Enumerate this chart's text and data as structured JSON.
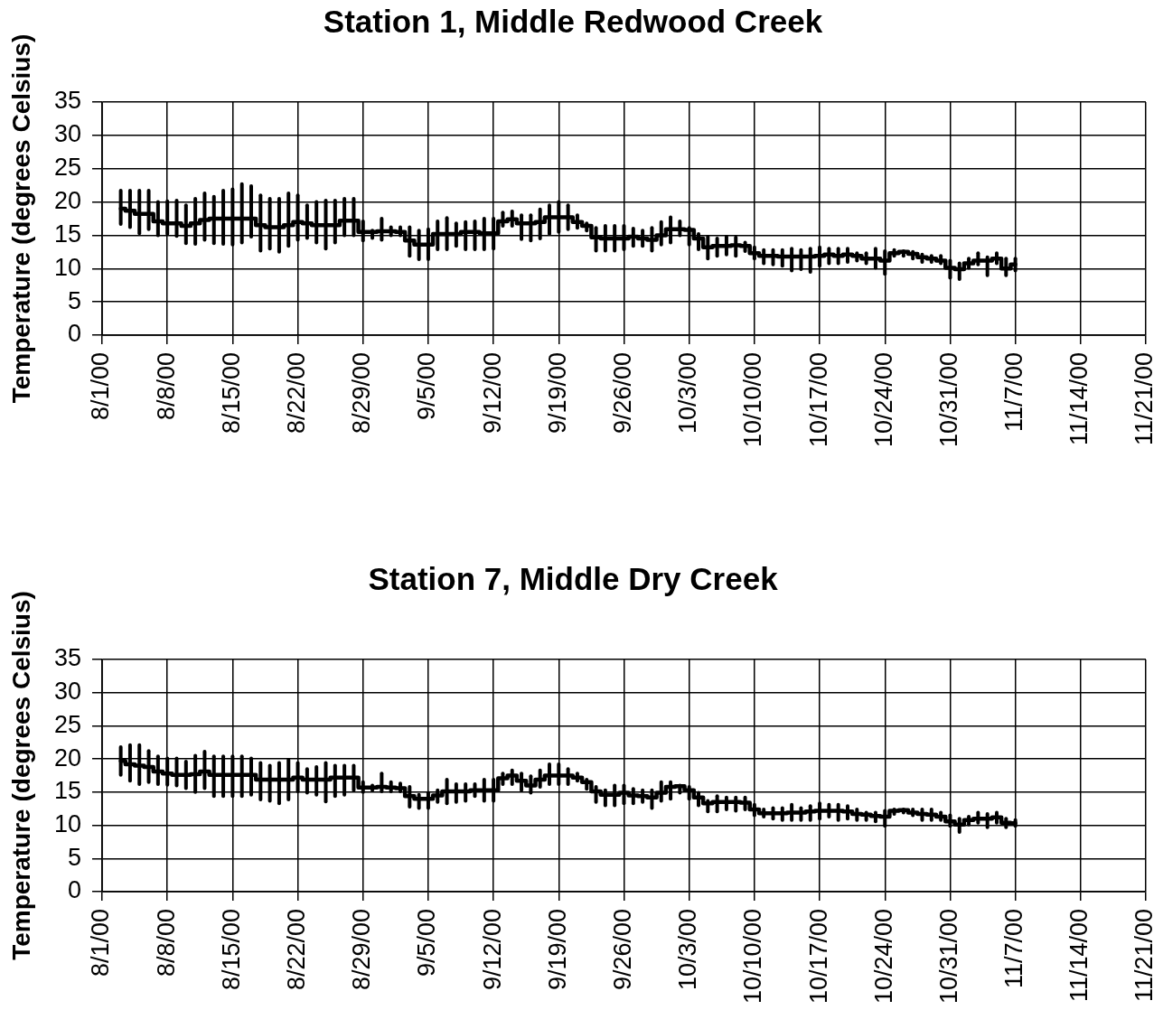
{
  "chart_data": [
    {
      "type": "step",
      "title": "Station 1, Middle Redwood Creek",
      "ylabel": "Temperature (degrees Celsius)",
      "color": "#000000",
      "grid": true,
      "xlim": [
        "2000-08-01",
        "2000-11-21"
      ],
      "xticks": [
        {
          "value": "2000-08-01",
          "label": "8/1/00"
        },
        {
          "value": "2000-08-08",
          "label": "8/8/00"
        },
        {
          "value": "2000-08-15",
          "label": "8/15/00"
        },
        {
          "value": "2000-08-22",
          "label": "8/22/00"
        },
        {
          "value": "2000-08-29",
          "label": "8/29/00"
        },
        {
          "value": "2000-09-05",
          "label": "9/5/00"
        },
        {
          "value": "2000-09-12",
          "label": "9/12/00"
        },
        {
          "value": "2000-09-19",
          "label": "9/19/00"
        },
        {
          "value": "2000-09-26",
          "label": "9/26/00"
        },
        {
          "value": "2000-10-03",
          "label": "10/3/00"
        },
        {
          "value": "2000-10-10",
          "label": "10/10/00"
        },
        {
          "value": "2000-10-17",
          "label": "10/17/00"
        },
        {
          "value": "2000-10-24",
          "label": "10/24/00"
        },
        {
          "value": "2000-10-31",
          "label": "10/31/00"
        },
        {
          "value": "2000-11-07",
          "label": "11/7/00"
        },
        {
          "value": "2000-11-14",
          "label": "11/14/00"
        },
        {
          "value": "2000-11-21",
          "label": "11/21/00"
        }
      ],
      "ylim": [
        0,
        35
      ],
      "yticks": [
        0,
        5,
        10,
        15,
        20,
        25,
        30,
        35
      ],
      "x": [
        "2000-08-03",
        "2000-08-04",
        "2000-08-05",
        "2000-08-06",
        "2000-08-07",
        "2000-08-08",
        "2000-08-09",
        "2000-08-10",
        "2000-08-11",
        "2000-08-12",
        "2000-08-13",
        "2000-08-14",
        "2000-08-15",
        "2000-08-16",
        "2000-08-17",
        "2000-08-18",
        "2000-08-19",
        "2000-08-20",
        "2000-08-21",
        "2000-08-22",
        "2000-08-23",
        "2000-08-24",
        "2000-08-25",
        "2000-08-26",
        "2000-08-27",
        "2000-08-28",
        "2000-08-29",
        "2000-08-30",
        "2000-08-31",
        "2000-09-01",
        "2000-09-02",
        "2000-09-03",
        "2000-09-04",
        "2000-09-05",
        "2000-09-06",
        "2000-09-07",
        "2000-09-08",
        "2000-09-09",
        "2000-09-10",
        "2000-09-11",
        "2000-09-12",
        "2000-09-13",
        "2000-09-14",
        "2000-09-15",
        "2000-09-16",
        "2000-09-17",
        "2000-09-18",
        "2000-09-19",
        "2000-09-20",
        "2000-09-21",
        "2000-09-22",
        "2000-09-23",
        "2000-09-24",
        "2000-09-25",
        "2000-09-26",
        "2000-09-27",
        "2000-09-28",
        "2000-09-29",
        "2000-09-30",
        "2000-10-01",
        "2000-10-02",
        "2000-10-03",
        "2000-10-04",
        "2000-10-05",
        "2000-10-06",
        "2000-10-07",
        "2000-10-08",
        "2000-10-09",
        "2000-10-10",
        "2000-10-11",
        "2000-10-12",
        "2000-10-13",
        "2000-10-14",
        "2000-10-15",
        "2000-10-16",
        "2000-10-17",
        "2000-10-18",
        "2000-10-19",
        "2000-10-20",
        "2000-10-21",
        "2000-10-22",
        "2000-10-23",
        "2000-10-24",
        "2000-10-25",
        "2000-10-26",
        "2000-10-27",
        "2000-10-28",
        "2000-10-29",
        "2000-10-30",
        "2000-10-31",
        "2000-11-01",
        "2000-11-02",
        "2000-11-03",
        "2000-11-04",
        "2000-11-05",
        "2000-11-06",
        "2000-11-07"
      ],
      "values": [
        19.0,
        18.7,
        18.2,
        18.2,
        17.1,
        16.8,
        16.8,
        16.4,
        16.8,
        17.3,
        17.5,
        17.5,
        17.5,
        17.5,
        17.5,
        16.5,
        16.2,
        16.2,
        16.5,
        17.0,
        16.8,
        16.5,
        16.5,
        16.5,
        17.2,
        17.2,
        15.5,
        15.5,
        15.6,
        15.6,
        15.5,
        14.2,
        13.6,
        13.6,
        15.2,
        15.2,
        15.2,
        15.5,
        15.5,
        15.3,
        15.3,
        17.1,
        17.4,
        16.8,
        16.8,
        17.0,
        17.7,
        17.7,
        17.7,
        17.0,
        16.4,
        14.7,
        14.5,
        14.5,
        14.5,
        14.8,
        14.5,
        14.3,
        15.0,
        15.9,
        15.9,
        15.8,
        14.5,
        13.2,
        13.4,
        13.4,
        13.5,
        13.4,
        12.3,
        11.9,
        11.9,
        11.8,
        11.8,
        11.8,
        11.8,
        11.9,
        12.1,
        11.9,
        12.1,
        11.9,
        11.5,
        11.5,
        11.2,
        12.3,
        12.5,
        12.2,
        11.7,
        11.5,
        11.2,
        10.1,
        9.9,
        10.8,
        11.2,
        11.2,
        11.5,
        10.0,
        10.6
      ],
      "errors": [
        [
          16.7,
          21.7
        ],
        [
          16.2,
          21.7
        ],
        [
          15.3,
          21.7
        ],
        [
          15.9,
          21.7
        ],
        [
          15.0,
          20.0
        ],
        [
          15.2,
          20.1
        ],
        [
          14.9,
          20.2
        ],
        [
          13.8,
          19.5
        ],
        [
          13.7,
          20.5
        ],
        [
          14.3,
          21.3
        ],
        [
          13.8,
          20.8
        ],
        [
          13.7,
          21.7
        ],
        [
          13.6,
          21.9
        ],
        [
          13.9,
          22.7
        ],
        [
          14.8,
          22.4
        ],
        [
          12.7,
          21.0
        ],
        [
          13.0,
          20.5
        ],
        [
          12.5,
          20.5
        ],
        [
          13.4,
          21.3
        ],
        [
          14.3,
          21.0
        ],
        [
          14.6,
          19.5
        ],
        [
          13.9,
          20.0
        ],
        [
          13.0,
          20.2
        ],
        [
          13.9,
          20.2
        ],
        [
          15.0,
          20.5
        ],
        [
          15.0,
          20.5
        ],
        [
          14.2,
          17.1
        ],
        [
          14.6,
          15.7
        ],
        [
          14.3,
          17.5
        ],
        [
          15.0,
          16.2
        ],
        [
          15.0,
          16.2
        ],
        [
          11.9,
          16.2
        ],
        [
          11.4,
          15.7
        ],
        [
          11.4,
          15.9
        ],
        [
          12.9,
          17.1
        ],
        [
          12.9,
          17.6
        ],
        [
          13.4,
          16.8
        ],
        [
          12.9,
          17.0
        ],
        [
          12.9,
          17.1
        ],
        [
          12.9,
          17.5
        ],
        [
          13.0,
          17.5
        ],
        [
          16.4,
          18.4
        ],
        [
          16.4,
          18.6
        ],
        [
          14.4,
          18.0
        ],
        [
          14.2,
          18.0
        ],
        [
          14.5,
          18.9
        ],
        [
          15.2,
          19.5
        ],
        [
          15.5,
          20.0
        ],
        [
          15.9,
          19.5
        ],
        [
          16.1,
          18.0
        ],
        [
          15.7,
          16.8
        ],
        [
          12.7,
          16.1
        ],
        [
          12.7,
          16.4
        ],
        [
          12.7,
          16.4
        ],
        [
          12.9,
          16.4
        ],
        [
          13.4,
          16.0
        ],
        [
          13.4,
          15.7
        ],
        [
          12.7,
          16.1
        ],
        [
          13.6,
          17.0
        ],
        [
          13.9,
          17.7
        ],
        [
          15.0,
          17.1
        ],
        [
          13.6,
          16.1
        ],
        [
          12.9,
          15.2
        ],
        [
          11.5,
          14.8
        ],
        [
          11.9,
          14.5
        ],
        [
          12.1,
          14.8
        ],
        [
          11.9,
          14.7
        ],
        [
          12.6,
          13.9
        ],
        [
          11.5,
          13.2
        ],
        [
          10.8,
          12.8
        ],
        [
          10.6,
          12.8
        ],
        [
          10.4,
          12.8
        ],
        [
          9.7,
          13.0
        ],
        [
          9.9,
          12.8
        ],
        [
          9.5,
          13.0
        ],
        [
          10.4,
          13.2
        ],
        [
          10.8,
          13.0
        ],
        [
          10.8,
          13.0
        ],
        [
          11.0,
          13.0
        ],
        [
          11.2,
          12.3
        ],
        [
          10.8,
          12.3
        ],
        [
          10.1,
          13.0
        ],
        [
          9.2,
          12.6
        ],
        [
          11.9,
          12.8
        ],
        [
          11.9,
          12.6
        ],
        [
          11.5,
          12.5
        ],
        [
          11.0,
          12.1
        ],
        [
          11.0,
          11.9
        ],
        [
          10.8,
          11.9
        ],
        [
          8.6,
          11.2
        ],
        [
          8.4,
          10.8
        ],
        [
          10.1,
          11.5
        ],
        [
          10.6,
          12.3
        ],
        [
          9.0,
          11.7
        ],
        [
          10.8,
          12.3
        ],
        [
          9.0,
          11.5
        ],
        [
          9.7,
          11.5
        ]
      ]
    },
    {
      "type": "step",
      "title": "Station 7, Middle Dry Creek",
      "ylabel": "Temperature (degrees Celsius)",
      "color": "#000000",
      "grid": true,
      "xlim": [
        "2000-08-01",
        "2000-11-21"
      ],
      "xticks": [
        {
          "value": "2000-08-01",
          "label": "8/1/00"
        },
        {
          "value": "2000-08-08",
          "label": "8/8/00"
        },
        {
          "value": "2000-08-15",
          "label": "8/15/00"
        },
        {
          "value": "2000-08-22",
          "label": "8/22/00"
        },
        {
          "value": "2000-08-29",
          "label": "8/29/00"
        },
        {
          "value": "2000-09-05",
          "label": "9/5/00"
        },
        {
          "value": "2000-09-12",
          "label": "9/12/00"
        },
        {
          "value": "2000-09-19",
          "label": "9/19/00"
        },
        {
          "value": "2000-09-26",
          "label": "9/26/00"
        },
        {
          "value": "2000-10-03",
          "label": "10/3/00"
        },
        {
          "value": "2000-10-10",
          "label": "10/10/00"
        },
        {
          "value": "2000-10-17",
          "label": "10/17/00"
        },
        {
          "value": "2000-10-24",
          "label": "10/24/00"
        },
        {
          "value": "2000-10-31",
          "label": "10/31/00"
        },
        {
          "value": "2000-11-07",
          "label": "11/7/00"
        },
        {
          "value": "2000-11-14",
          "label": "11/14/00"
        },
        {
          "value": "2000-11-21",
          "label": "11/21/00"
        }
      ],
      "ylim": [
        0,
        35
      ],
      "yticks": [
        0,
        5,
        10,
        15,
        20,
        25,
        30,
        35
      ],
      "x": [
        "2000-08-03",
        "2000-08-04",
        "2000-08-05",
        "2000-08-06",
        "2000-08-07",
        "2000-08-08",
        "2000-08-09",
        "2000-08-10",
        "2000-08-11",
        "2000-08-12",
        "2000-08-13",
        "2000-08-14",
        "2000-08-15",
        "2000-08-16",
        "2000-08-17",
        "2000-08-18",
        "2000-08-19",
        "2000-08-20",
        "2000-08-21",
        "2000-08-22",
        "2000-08-23",
        "2000-08-24",
        "2000-08-25",
        "2000-08-26",
        "2000-08-27",
        "2000-08-28",
        "2000-08-29",
        "2000-08-30",
        "2000-08-31",
        "2000-09-01",
        "2000-09-02",
        "2000-09-03",
        "2000-09-04",
        "2000-09-05",
        "2000-09-06",
        "2000-09-07",
        "2000-09-08",
        "2000-09-09",
        "2000-09-10",
        "2000-09-11",
        "2000-09-12",
        "2000-09-13",
        "2000-09-14",
        "2000-09-15",
        "2000-09-16",
        "2000-09-17",
        "2000-09-18",
        "2000-09-19",
        "2000-09-20",
        "2000-09-21",
        "2000-09-22",
        "2000-09-23",
        "2000-09-24",
        "2000-09-25",
        "2000-09-26",
        "2000-09-27",
        "2000-09-28",
        "2000-09-29",
        "2000-09-30",
        "2000-10-01",
        "2000-10-02",
        "2000-10-03",
        "2000-10-04",
        "2000-10-05",
        "2000-10-06",
        "2000-10-07",
        "2000-10-08",
        "2000-10-09",
        "2000-10-10",
        "2000-10-11",
        "2000-10-12",
        "2000-10-13",
        "2000-10-14",
        "2000-10-15",
        "2000-10-16",
        "2000-10-17",
        "2000-10-18",
        "2000-10-19",
        "2000-10-20",
        "2000-10-21",
        "2000-10-22",
        "2000-10-23",
        "2000-10-24",
        "2000-10-25",
        "2000-10-26",
        "2000-10-27",
        "2000-10-28",
        "2000-10-29",
        "2000-10-30",
        "2000-10-31",
        "2000-11-01",
        "2000-11-02",
        "2000-11-03",
        "2000-11-04",
        "2000-11-05",
        "2000-11-06",
        "2000-11-07"
      ],
      "values": [
        19.7,
        19.2,
        19.0,
        18.8,
        18.1,
        17.8,
        17.6,
        17.6,
        17.7,
        18.1,
        17.6,
        17.6,
        17.6,
        17.6,
        17.6,
        16.9,
        16.9,
        16.9,
        16.9,
        17.2,
        16.9,
        16.9,
        16.9,
        17.2,
        17.2,
        17.2,
        15.7,
        15.7,
        15.8,
        15.7,
        15.6,
        14.4,
        14.0,
        14.0,
        14.5,
        15.1,
        15.1,
        15.1,
        15.3,
        15.3,
        15.3,
        17.1,
        17.5,
        16.7,
        16.0,
        16.9,
        17.5,
        17.5,
        17.5,
        17.2,
        16.5,
        15.1,
        14.6,
        14.6,
        14.9,
        14.5,
        14.4,
        14.2,
        14.9,
        15.8,
        15.9,
        15.3,
        14.2,
        13.3,
        13.5,
        13.5,
        13.5,
        13.4,
        12.4,
        11.8,
        11.8,
        11.8,
        11.9,
        11.9,
        12.1,
        12.2,
        12.2,
        12.2,
        12.1,
        11.7,
        11.6,
        11.4,
        11.3,
        12.2,
        12.3,
        11.9,
        11.7,
        11.6,
        11.3,
        10.6,
        10.1,
        10.8,
        11.0,
        11.0,
        11.2,
        10.4,
        10.3
      ],
      "errors": [
        [
          17.6,
          21.8
        ],
        [
          16.7,
          22.1
        ],
        [
          16.2,
          22.1
        ],
        [
          16.5,
          21.2
        ],
        [
          16.2,
          20.4
        ],
        [
          16.1,
          20.1
        ],
        [
          16.0,
          20.1
        ],
        [
          15.6,
          19.6
        ],
        [
          15.0,
          20.5
        ],
        [
          15.6,
          21.1
        ],
        [
          14.4,
          20.4
        ],
        [
          14.4,
          20.4
        ],
        [
          14.4,
          20.4
        ],
        [
          14.4,
          20.4
        ],
        [
          14.6,
          20.1
        ],
        [
          13.9,
          19.4
        ],
        [
          13.7,
          19.0
        ],
        [
          13.3,
          19.4
        ],
        [
          13.9,
          19.9
        ],
        [
          15.1,
          19.4
        ],
        [
          14.9,
          18.5
        ],
        [
          14.6,
          18.8
        ],
        [
          13.6,
          19.4
        ],
        [
          14.4,
          19.0
        ],
        [
          14.6,
          19.0
        ],
        [
          15.3,
          19.0
        ],
        [
          15.0,
          16.5
        ],
        [
          15.3,
          16.0
        ],
        [
          15.1,
          17.8
        ],
        [
          15.1,
          16.5
        ],
        [
          15.1,
          16.3
        ],
        [
          12.8,
          15.8
        ],
        [
          12.6,
          14.6
        ],
        [
          12.6,
          14.9
        ],
        [
          13.5,
          15.3
        ],
        [
          13.3,
          16.9
        ],
        [
          13.5,
          16.2
        ],
        [
          13.7,
          16.2
        ],
        [
          14.4,
          16.2
        ],
        [
          13.7,
          16.9
        ],
        [
          13.7,
          16.9
        ],
        [
          16.2,
          17.8
        ],
        [
          16.2,
          18.3
        ],
        [
          15.3,
          17.8
        ],
        [
          14.9,
          17.4
        ],
        [
          15.8,
          18.3
        ],
        [
          16.2,
          19.2
        ],
        [
          16.2,
          19.2
        ],
        [
          16.2,
          18.5
        ],
        [
          16.7,
          17.8
        ],
        [
          15.5,
          16.9
        ],
        [
          13.5,
          15.8
        ],
        [
          13.0,
          15.3
        ],
        [
          13.0,
          16.0
        ],
        [
          13.3,
          16.0
        ],
        [
          13.3,
          15.5
        ],
        [
          13.5,
          15.3
        ],
        [
          12.6,
          15.3
        ],
        [
          13.7,
          16.5
        ],
        [
          14.0,
          16.5
        ],
        [
          14.9,
          16.0
        ],
        [
          14.0,
          15.8
        ],
        [
          13.0,
          14.9
        ],
        [
          12.1,
          13.7
        ],
        [
          12.1,
          14.4
        ],
        [
          12.4,
          14.2
        ],
        [
          12.2,
          14.2
        ],
        [
          12.4,
          14.2
        ],
        [
          11.5,
          13.1
        ],
        [
          11.3,
          12.4
        ],
        [
          11.0,
          12.6
        ],
        [
          10.8,
          12.6
        ],
        [
          10.8,
          13.1
        ],
        [
          10.8,
          12.6
        ],
        [
          10.8,
          12.9
        ],
        [
          11.0,
          13.3
        ],
        [
          11.3,
          13.1
        ],
        [
          10.8,
          13.1
        ],
        [
          11.0,
          12.9
        ],
        [
          10.8,
          12.4
        ],
        [
          10.8,
          11.9
        ],
        [
          10.6,
          11.9
        ],
        [
          9.9,
          12.2
        ],
        [
          11.7,
          12.4
        ],
        [
          11.9,
          12.4
        ],
        [
          11.5,
          12.4
        ],
        [
          10.8,
          12.4
        ],
        [
          10.8,
          12.4
        ],
        [
          10.8,
          11.9
        ],
        [
          9.9,
          11.5
        ],
        [
          9.0,
          11.0
        ],
        [
          10.1,
          11.3
        ],
        [
          10.4,
          11.9
        ],
        [
          9.7,
          11.7
        ],
        [
          10.4,
          11.9
        ],
        [
          9.7,
          11.0
        ],
        [
          9.9,
          10.8
        ]
      ]
    }
  ]
}
